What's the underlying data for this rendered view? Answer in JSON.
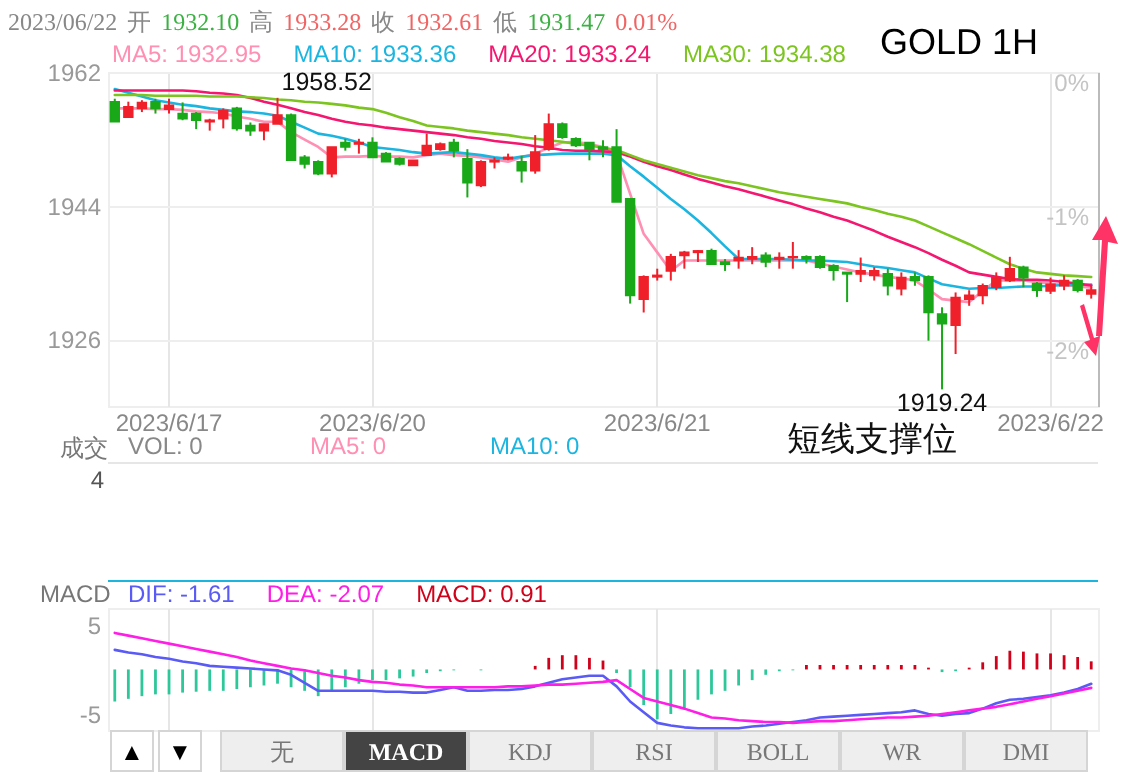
{
  "chart_data": [
    {
      "type": "candlestick",
      "title": "GOLD 1H",
      "categories": [
        null,
        null,
        null,
        null,
        "2023/6/17",
        null,
        null,
        null,
        null,
        null,
        null,
        null,
        null,
        null,
        null,
        null,
        null,
        null,
        null,
        "2023/6/20",
        null,
        null,
        null,
        null,
        null,
        null,
        null,
        null,
        null,
        null,
        null,
        null,
        null,
        null,
        null,
        null,
        null,
        null,
        null,
        null,
        "2023/6/21",
        null,
        null,
        null,
        null,
        null,
        null,
        null,
        null,
        null,
        null,
        null,
        null,
        null,
        null,
        null,
        null,
        null,
        null,
        null,
        null,
        null,
        null,
        null,
        null,
        null,
        null,
        null,
        null,
        "2023/6/22",
        null,
        null,
        null
      ],
      "ohlc": [
        [
          1958.0,
          1958.4,
          1955.3,
          1955.3
        ],
        [
          1955.9,
          1958.0,
          1955.9,
          1957.3
        ],
        [
          1957.1,
          1958.2,
          1956.6,
          1957.9
        ],
        [
          1958.0,
          1958.4,
          1956.4,
          1957.1
        ],
        [
          1957.0,
          1958.4,
          1956.4,
          1957.5
        ],
        [
          1956.4,
          1957.9,
          1955.5,
          1955.7
        ],
        [
          1956.4,
          1956.6,
          1954.3,
          1955.5
        ],
        [
          1955.3,
          1955.7,
          1954.1,
          1955.5
        ],
        [
          1955.7,
          1957.1,
          1954.4,
          1956.8
        ],
        [
          1957.1,
          1957.3,
          1954.1,
          1954.4
        ],
        [
          1954.8,
          1955.2,
          1953.4,
          1954.1
        ],
        [
          1954.1,
          1955.0,
          1952.8,
          1955.0
        ],
        [
          1955.0,
          1958.52,
          1955.0,
          1956.2
        ],
        [
          1956.2,
          1956.4,
          1950.1,
          1950.1
        ],
        [
          1950.5,
          1950.8,
          1949.0,
          1949.6
        ],
        [
          1949.9,
          1950.1,
          1948.1,
          1948.3
        ],
        [
          1948.3,
          1951.9,
          1947.8,
          1951.9
        ],
        [
          1952.5,
          1953.0,
          1951.4,
          1951.9
        ],
        [
          1952.3,
          1953.0,
          1951.0,
          1952.5
        ],
        [
          1952.5,
          1953.2,
          1950.5,
          1950.5
        ],
        [
          1951.0,
          1951.2,
          1949.9,
          1949.9
        ],
        [
          1950.3,
          1950.5,
          1949.4,
          1949.6
        ],
        [
          1949.4,
          1950.1,
          1949.4,
          1950.1
        ],
        [
          1950.8,
          1953.7,
          1950.8,
          1952.1
        ],
        [
          1951.6,
          1952.5,
          1951.4,
          1952.3
        ],
        [
          1952.5,
          1953.0,
          1950.5,
          1951.4
        ],
        [
          1950.3,
          1951.6,
          1945.1,
          1947.1
        ],
        [
          1946.7,
          1950.1,
          1946.5,
          1949.9
        ],
        [
          1949.9,
          1950.5,
          1949.0,
          1950.1
        ],
        [
          1950.3,
          1951.0,
          1950.1,
          1950.5
        ],
        [
          1949.9,
          1950.7,
          1947.1,
          1948.7
        ],
        [
          1948.7,
          1953.5,
          1948.3,
          1951.2
        ],
        [
          1951.6,
          1956.4,
          1951.4,
          1955.0
        ],
        [
          1955.0,
          1955.2,
          1953.0,
          1953.2
        ],
        [
          1953.0,
          1953.2,
          1951.9,
          1952.1
        ],
        [
          1952.5,
          1952.5,
          1950.1,
          1951.6
        ],
        [
          1951.9,
          1952.8,
          1950.5,
          1951.6
        ],
        [
          1951.9,
          1954.3,
          1944.5,
          1944.5
        ],
        [
          1944.9,
          1944.9,
          1930.8,
          1931.9
        ],
        [
          1931.4,
          1934.6,
          1929.6,
          1934.4
        ],
        [
          1934.4,
          1935.5,
          1933.9,
          1934.6
        ],
        [
          1935.2,
          1937.5,
          1933.9,
          1937.1
        ],
        [
          1937.3,
          1937.9,
          1935.5,
          1937.7
        ],
        [
          1937.7,
          1938.0,
          1936.4,
          1937.9
        ],
        [
          1937.9,
          1938.2,
          1936.1,
          1936.1
        ],
        [
          1936.4,
          1936.8,
          1935.2,
          1936.1
        ],
        [
          1936.6,
          1938.0,
          1935.5,
          1937.0
        ],
        [
          1936.8,
          1938.4,
          1936.1,
          1937.1
        ],
        [
          1937.3,
          1937.7,
          1935.7,
          1936.4
        ],
        [
          1936.8,
          1937.7,
          1935.5,
          1937.0
        ],
        [
          1937.0,
          1939.1,
          1935.5,
          1937.1
        ],
        [
          1937.1,
          1937.3,
          1936.2,
          1936.8
        ],
        [
          1937.1,
          1937.3,
          1935.5,
          1935.7
        ],
        [
          1935.9,
          1936.1,
          1933.9,
          1935.3
        ],
        [
          1935.0,
          1935.0,
          1931.0,
          1934.8
        ],
        [
          1934.8,
          1937.0,
          1933.7,
          1935.2
        ],
        [
          1934.6,
          1935.7,
          1933.9,
          1935.2
        ],
        [
          1934.8,
          1935.5,
          1931.9,
          1933.2
        ],
        [
          1932.8,
          1935.0,
          1931.9,
          1934.3
        ],
        [
          1934.4,
          1935.0,
          1933.2,
          1933.9
        ],
        [
          1934.4,
          1934.6,
          1925.8,
          1929.6
        ],
        [
          1929.4,
          1930.3,
          1919.24,
          1928.1
        ],
        [
          1927.9,
          1932.3,
          1924.0,
          1931.6
        ],
        [
          1931.4,
          1932.6,
          1930.5,
          1931.9
        ],
        [
          1931.9,
          1933.5,
          1930.7,
          1933.2
        ],
        [
          1933.0,
          1935.0,
          1932.6,
          1934.3
        ],
        [
          1933.9,
          1937.1,
          1933.7,
          1935.5
        ],
        [
          1935.7,
          1935.9,
          1933.0,
          1934.3
        ],
        [
          1933.5,
          1933.7,
          1931.7,
          1932.6
        ],
        [
          1932.5,
          1934.3,
          1932.1,
          1933.4
        ],
        [
          1933.2,
          1934.6,
          1932.6,
          1933.9
        ],
        [
          1933.9,
          1934.1,
          1932.3,
          1932.6
        ],
        [
          1932.1,
          1933.28,
          1931.47,
          1932.61
        ]
      ],
      "colors": [
        "#18a818",
        "#f0202a",
        "#f0202a",
        "#18a818",
        "#f0202a",
        "#18a818",
        "#18a818",
        "#f0202a",
        "#f0202a",
        "#18a818",
        "#18a818",
        "#f0202a",
        "#f0202a",
        "#18a818",
        "#18a818",
        "#18a818",
        "#f0202a",
        "#18a818",
        "#f0202a",
        "#18a818",
        "#18a818",
        "#18a818",
        "#f0202a",
        "#f0202a",
        "#f0202a",
        "#18a818",
        "#18a818",
        "#f0202a",
        "#f0202a",
        "#f0202a",
        "#18a818",
        "#f0202a",
        "#f0202a",
        "#18a818",
        "#18a818",
        "#18a818",
        "#18a818",
        "#18a818",
        "#18a818",
        "#f0202a",
        "#f0202a",
        "#f0202a",
        "#f0202a",
        "#f0202a",
        "#18a818",
        "#18a818",
        "#f0202a",
        "#f0202a",
        "#18a818",
        "#f0202a",
        "#f0202a",
        "#18a818",
        "#18a818",
        "#18a818",
        "#18a818",
        "#f0202a",
        "#f0202a",
        "#18a818",
        "#f0202a",
        "#18a818",
        "#18a818",
        "#18a818",
        "#f0202a",
        "#f0202a",
        "#f0202a",
        "#f0202a",
        "#f0202a",
        "#18a818",
        "#18a818",
        "#f0202a",
        "#f0202a",
        "#18a818",
        "#f0202a"
      ],
      "series": [
        {
          "name": "MA5: 1932.95",
          "type": "line",
          "color": "#ff8fb3",
          "values": [
            1957.1,
            1957.1,
            1957.1,
            1957.0,
            1957.0,
            1956.9,
            1956.7,
            1956.6,
            1956.4,
            1956.0,
            1955.7,
            1955.3,
            1955.3,
            1953.9,
            1952.9,
            1951.9,
            1950.5,
            1950.6,
            1950.6,
            1950.7,
            1950.6,
            1950.6,
            1950.5,
            1950.8,
            1951.0,
            1950.8,
            1950.7,
            1950.5,
            1950.2,
            1949.9,
            1950.5,
            1951.0,
            1951.8,
            1952.5,
            1952.6,
            1952.3,
            1951.9,
            1951.0,
            1945.6,
            1940.2,
            1937.7,
            1935.2,
            1936.6,
            1936.6,
            1936.6,
            1936.6,
            1936.6,
            1936.6,
            1936.6,
            1936.6,
            1936.6,
            1936.6,
            1936.2,
            1935.8,
            1935.4,
            1935.0,
            1934.7,
            1934.4,
            1934.2,
            1933.9,
            1932.7,
            1931.4,
            1931.2,
            1931.0,
            1932.5,
            1933.9,
            1933.9,
            1933.9,
            1933.7,
            1933.5,
            1933.3,
            1933.1,
            1932.95
          ]
        },
        {
          "name": "MA10: 1933.36",
          "type": "line",
          "color": "#1cb5e0",
          "values": [
            1959.7,
            1959.2,
            1958.7,
            1958.2,
            1957.9,
            1957.6,
            1957.4,
            1957.1,
            1956.9,
            1956.7,
            1956.6,
            1956.4,
            1956.1,
            1955.3,
            1954.5,
            1953.7,
            1953.4,
            1953.0,
            1952.5,
            1951.9,
            1951.7,
            1951.5,
            1951.2,
            1951.0,
            1951.1,
            1951.2,
            1951.0,
            1950.8,
            1950.5,
            1950.3,
            1950.6,
            1950.8,
            1950.9,
            1951.0,
            1951.0,
            1951.0,
            1951.0,
            1950.8,
            1949.3,
            1947.9,
            1946.4,
            1944.9,
            1943.5,
            1942.0,
            1940.3,
            1938.5,
            1936.8,
            1936.8,
            1936.8,
            1936.8,
            1936.7,
            1936.6,
            1936.6,
            1936.5,
            1936.4,
            1936.1,
            1935.8,
            1935.6,
            1935.3,
            1935.0,
            1934.2,
            1933.4,
            1933.1,
            1932.8,
            1932.9,
            1932.9,
            1933.0,
            1933.1,
            1933.1,
            1933.2,
            1933.3,
            1933.3,
            1933.36
          ]
        },
        {
          "name": "MA20: 1933.24",
          "type": "line",
          "color": "#f5166f",
          "values": [
            1959.5,
            1959.5,
            1959.5,
            1959.5,
            1959.5,
            1959.5,
            1959.4,
            1959.2,
            1959.1,
            1958.9,
            1958.5,
            1958.0,
            1957.6,
            1957.1,
            1956.6,
            1956.2,
            1955.7,
            1955.3,
            1955.0,
            1954.8,
            1954.5,
            1954.3,
            1954.1,
            1953.9,
            1953.7,
            1953.5,
            1953.2,
            1953.0,
            1952.7,
            1952.5,
            1952.3,
            1952.0,
            1951.8,
            1951.5,
            1951.4,
            1951.4,
            1951.3,
            1951.2,
            1950.6,
            1949.9,
            1949.3,
            1948.8,
            1948.2,
            1947.6,
            1947.1,
            1946.6,
            1946.2,
            1945.7,
            1945.2,
            1944.7,
            1944.2,
            1943.6,
            1943.1,
            1942.5,
            1942.0,
            1941.3,
            1940.6,
            1939.8,
            1939.1,
            1938.4,
            1937.6,
            1936.7,
            1935.9,
            1935.0,
            1934.7,
            1934.4,
            1934.1,
            1934.0,
            1934.0,
            1933.9,
            1933.7,
            1933.5,
            1933.24
          ]
        },
        {
          "name": "MA30: 1934.38",
          "type": "line",
          "color": "#7cc41f",
          "values": [
            1958.9,
            1958.9,
            1958.9,
            1958.8,
            1958.8,
            1958.8,
            1958.8,
            1958.7,
            1958.7,
            1958.7,
            1958.6,
            1958.5,
            1958.3,
            1958.2,
            1958.0,
            1957.9,
            1957.7,
            1957.5,
            1957.2,
            1957.0,
            1956.5,
            1955.9,
            1955.4,
            1954.8,
            1954.6,
            1954.4,
            1954.1,
            1953.9,
            1953.7,
            1953.5,
            1953.2,
            1953.0,
            1952.8,
            1952.6,
            1952.3,
            1952.1,
            1951.8,
            1951.5,
            1950.8,
            1950.1,
            1949.6,
            1949.1,
            1948.6,
            1948.1,
            1947.7,
            1947.3,
            1947.0,
            1946.6,
            1946.2,
            1945.8,
            1945.5,
            1945.2,
            1944.9,
            1944.6,
            1944.3,
            1943.8,
            1943.4,
            1942.9,
            1942.5,
            1942.0,
            1941.2,
            1940.4,
            1939.6,
            1938.8,
            1937.9,
            1937.0,
            1936.1,
            1935.5,
            1935.0,
            1934.8,
            1934.6,
            1934.5,
            1934.38
          ]
        }
      ],
      "ylim": [
        1917,
        1962
      ],
      "yticks": [
        1926,
        1944,
        1962
      ],
      "y2lim": [
        -2.49,
        0
      ],
      "y2ticks": [
        {
          "value": -2,
          "label": "-2%"
        },
        {
          "value": -1,
          "label": "-1%"
        },
        {
          "value": 0,
          "label": "0%"
        }
      ],
      "grid": true,
      "legend": "top left",
      "annotations": [
        "2023/06/22",
        "开",
        "1932.10",
        "高",
        "1933.28",
        "收",
        "1932.61",
        "低",
        "1931.47",
        "0.01%",
        {
          "text": "1958.52",
          "y": 1958.52
        },
        {
          "text": "1919.24",
          "y": 1919.24
        },
        "短线支撑位"
      ]
    },
    {
      "type": "other",
      "title": "成交",
      "annotations": [
        "VOL: 0",
        "MA5: 0",
        "MA10: 0",
        "4"
      ]
    },
    {
      "type": "bar",
      "title": "MACD",
      "categories": [
        null,
        null,
        null,
        null,
        "2023/6/17",
        null,
        null,
        null,
        null,
        null,
        null,
        null,
        null,
        null,
        null,
        null,
        null,
        null,
        null,
        "2023/6/20",
        null,
        null,
        null,
        null,
        null,
        null,
        null,
        null,
        null,
        null,
        null,
        null,
        null,
        null,
        null,
        null,
        null,
        null,
        null,
        null,
        "2023/6/21",
        null,
        null,
        null,
        null,
        null,
        null,
        null,
        null,
        null,
        null,
        null,
        null,
        null,
        null,
        null,
        null,
        null,
        null,
        null,
        null,
        null,
        null,
        null,
        null,
        null,
        null,
        null,
        null,
        "2023/6/22",
        null,
        null,
        null
      ],
      "tick_labels": "y",
      "grid": "x",
      "legend": "top left",
      "ylim": [
        -6.8,
        6.9
      ],
      "yticks": [
        -5,
        5
      ],
      "series": [
        {
          "name": "DIF: -1.61",
          "type": "line",
          "color": "#5a5af5",
          "values": [
            2.2,
            1.9,
            1.7,
            1.4,
            1.2,
            0.9,
            0.7,
            0.4,
            0.3,
            0.2,
            0.1,
            0.0,
            -0.1,
            -0.6,
            -1.5,
            -2.4,
            -2.4,
            -2.4,
            -2.4,
            -2.4,
            -2.5,
            -2.5,
            -2.6,
            -2.6,
            -2.3,
            -2.0,
            -2.4,
            -2.4,
            -2.3,
            -2.3,
            -2.2,
            -1.9,
            -1.5,
            -1.1,
            -0.9,
            -0.7,
            -0.7,
            -1.9,
            -3.6,
            -4.8,
            -6.0,
            -6.3,
            -6.5,
            -6.6,
            -6.6,
            -6.6,
            -6.6,
            -6.4,
            -6.3,
            -6.1,
            -5.9,
            -5.7,
            -5.4,
            -5.3,
            -5.2,
            -5.1,
            -5.0,
            -4.9,
            -4.8,
            -4.6,
            -5.0,
            -5.2,
            -5.0,
            -4.9,
            -4.4,
            -3.8,
            -3.4,
            -3.3,
            -3.1,
            -2.9,
            -2.6,
            -2.2,
            -1.61
          ]
        },
        {
          "name": "DEA: -2.07",
          "type": "line",
          "color": "#ff1ee6",
          "values": [
            4.1,
            3.8,
            3.5,
            3.2,
            2.9,
            2.6,
            2.3,
            2.0,
            1.7,
            1.4,
            1.0,
            0.7,
            0.4,
            0.1,
            -0.1,
            -0.4,
            -0.7,
            -0.9,
            -1.2,
            -1.4,
            -1.5,
            -1.7,
            -1.8,
            -2.0,
            -2.0,
            -2.0,
            -2.0,
            -2.0,
            -2.0,
            -1.9,
            -1.9,
            -1.8,
            -1.7,
            -1.7,
            -1.6,
            -1.5,
            -1.4,
            -1.2,
            -2.2,
            -3.2,
            -3.6,
            -4.0,
            -4.4,
            -4.9,
            -5.4,
            -5.5,
            -5.7,
            -5.8,
            -5.9,
            -5.9,
            -6.0,
            -5.9,
            -5.8,
            -5.8,
            -5.7,
            -5.6,
            -5.5,
            -5.4,
            -5.4,
            -5.3,
            -5.2,
            -5.0,
            -4.8,
            -4.6,
            -4.4,
            -4.2,
            -3.9,
            -3.6,
            -3.3,
            -3.0,
            -2.7,
            -2.4,
            -2.07
          ]
        },
        {
          "name": "MACD: 0.91",
          "values": [
            -3.6,
            -3.3,
            -3.0,
            -2.8,
            -2.8,
            -2.6,
            -2.5,
            -2.4,
            -2.4,
            -2.2,
            -2.0,
            -1.8,
            -1.6,
            -2.0,
            -2.4,
            -3.0,
            -2.4,
            -2.0,
            -1.6,
            -1.2,
            -1.2,
            -1.0,
            -0.8,
            -0.4,
            -0.2,
            -0.1,
            null,
            -0.1,
            null,
            0.0,
            null,
            0.4,
            1.3,
            1.6,
            1.6,
            1.3,
            1.0,
            -0.4,
            -2.0,
            -4.0,
            -5.6,
            -5.0,
            -4.4,
            -3.4,
            -2.8,
            -2.4,
            -1.8,
            -1.2,
            -0.6,
            -0.2,
            -0.1,
            0.5,
            0.5,
            0.5,
            0.5,
            0.5,
            0.5,
            0.5,
            0.5,
            0.5,
            0.2,
            -0.3,
            -0.2,
            0.2,
            0.8,
            1.5,
            2.1,
            2.0,
            1.8,
            1.8,
            1.6,
            1.4,
            0.91
          ],
          "colors": [
            "#2ec79a",
            "#2ec79a",
            "#2ec79a",
            "#2ec79a",
            "#2ec79a",
            "#2ec79a",
            "#2ec79a",
            "#2ec79a",
            "#2ec79a",
            "#2ec79a",
            "#2ec79a",
            "#2ec79a",
            "#2ec79a",
            "#2ec79a",
            "#2ec79a",
            "#2ec79a",
            "#2ec79a",
            "#2ec79a",
            "#2ec79a",
            "#2ec79a",
            "#2ec79a",
            "#2ec79a",
            "#2ec79a",
            "#2ec79a",
            "#2ec79a",
            "#2ec79a",
            "#d0021b",
            "#2ec79a",
            "#2ec79a",
            "#2ec79a",
            "#d0021b",
            "#d0021b",
            "#d0021b",
            "#d0021b",
            "#d0021b",
            "#d0021b",
            "#d0021b",
            "#2ec79a",
            "#2ec79a",
            "#2ec79a",
            "#2ec79a",
            "#2ec79a",
            "#2ec79a",
            "#2ec79a",
            "#2ec79a",
            "#2ec79a",
            "#2ec79a",
            "#2ec79a",
            "#2ec79a",
            "#2ec79a",
            "#2ec79a",
            "#d0021b",
            "#d0021b",
            "#d0021b",
            "#d0021b",
            "#d0021b",
            "#d0021b",
            "#d0021b",
            "#d0021b",
            "#d0021b",
            "#d0021b",
            "#2ec79a",
            "#2ec79a",
            "#d0021b",
            "#d0021b",
            "#d0021b",
            "#d0021b",
            "#d0021b",
            "#d0021b",
            "#d0021b",
            "#d0021b",
            "#d0021b",
            "#d0021b"
          ]
        }
      ]
    },
    {
      "type": "other",
      "annotations": [
        "▲",
        "▼",
        "无",
        "MACD",
        "KDJ",
        "RSI",
        "BOLL",
        "WR",
        "DMI"
      ]
    }
  ]
}
